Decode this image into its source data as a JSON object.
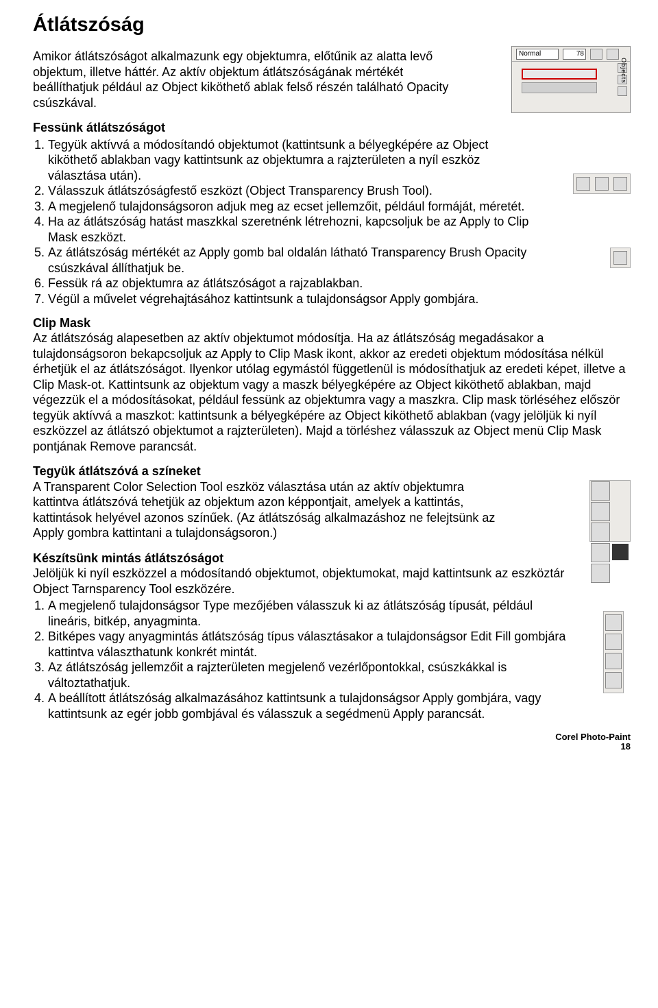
{
  "title": "Átlátszóság",
  "intro": "Amikor átlátszóságot alkalmazunk egy objektumra, előtűnik az alatta levő objektum, illetve háttér. Az aktív objektum átlátszóságának mértékét beállíthatjuk például az Object kiköthető ablak felső részén található Opacity csúszkával.",
  "panel": {
    "mode": "Normal",
    "opacity": "78",
    "side_label": "Objects"
  },
  "sec1": {
    "heading": "Fessünk átlátszóságot",
    "items": [
      "Tegyük aktívvá a módosítandó objektumot (kattintsunk a bélyegképére az Object kiköthető ablakban vagy kattintsunk az objektumra a rajzterületen a nyíl eszköz választása után).",
      "Válasszuk átlátszóságfestő eszközt (Object Transparency Brush Tool).",
      "A megjelenő tulajdonságsoron adjuk meg az ecset jellemzőit, például formáját, méretét.",
      "Ha az átlátszóság hatást maszkkal szeretnénk létrehozni, kapcsoljuk be az Apply to Clip Mask eszközt.",
      "Az átlátszóság mértékét az Apply gomb bal oldalán látható Transparency Brush Opacity csúszkával állíthatjuk be.",
      "Fessük rá az objektumra az átlátszóságot a rajzablakban.",
      "Végül a művelet végrehajtásához kattintsunk a tulajdonságsor Apply gombjára."
    ]
  },
  "sec2": {
    "heading": "Clip Mask",
    "body": "Az átlátszóság alapesetben az aktív objektumot módosítja. Ha az átlátszóság megadásakor a tulajdonságsoron bekapcsoljuk az Apply to Clip Mask ikont, akkor az eredeti objektum módosítása nélkül érhetjük el az átlátszóságot. Ilyenkor utólag egymástól függetlenül is módosíthatjuk az eredeti képet, illetve a Clip Mask-ot. Kattintsunk az objektum vagy a maszk bélyegképére az Object kiköthető ablakban, majd végezzük el a módosításokat, például fessünk az objektumra vagy a maszkra. Clip mask törléséhez először tegyük aktívvá a maszkot: kattintsunk a bélyegképére az Object kiköthető ablakban (vagy jelöljük ki nyíl eszközzel az átlátszó objektumot a rajzterületen). Majd a törléshez válasszuk az Object menü Clip Mask pontjának Remove parancsát."
  },
  "sec3": {
    "heading": "Tegyük átlátszóvá a színeket",
    "body": "A Transparent Color Selection Tool eszköz választása után az aktív objektumra kattintva átlátszóvá tehetjük az objektum azon képpontjait, amelyek a kattintás, kattintások helyével azonos színűek. (Az átlátszóság alkalmazáshoz ne felejtsünk az Apply gombra kattintani a tulajdonságsoron.)"
  },
  "sec4": {
    "heading": "Készítsünk mintás átlátszóságot",
    "lead": "Jelöljük ki nyíl eszközzel a módosítandó objektumot, objektumokat, majd kattintsunk az eszköztár Object Tarnsparency Tool eszközére.",
    "items": [
      "A megjelenő tulajdonságsor Type mezőjében válasszuk ki az átlátszóság típusát, például lineáris, bitkép, anyagminta.",
      "Bitképes vagy anyagmintás átlátszóság típus választásakor a tulajdonságsor Edit Fill gombjára kattintva választhatunk konkrét mintát.",
      "Az átlátszóság jellemzőit a rajzterületen megjelenő vezérlőpontokkal, csúszkákkal is változtathatjuk.",
      "A beállított átlátszóság alkalmazásához kattintsunk a tulajdonságsor Apply gombjára, vagy kattintsunk az egér jobb gombjával és válasszuk a segédmenü Apply parancsát."
    ]
  },
  "footer": {
    "product": "Corel Photo-Paint",
    "page": "18"
  }
}
